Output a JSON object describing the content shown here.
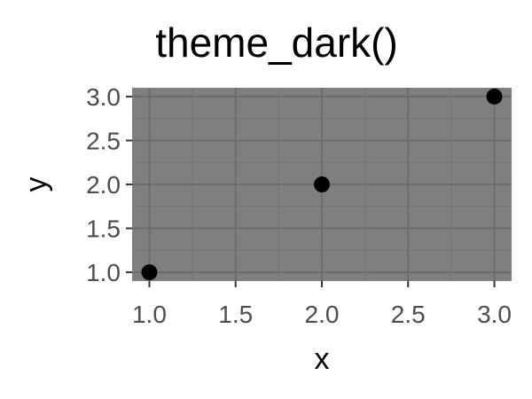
{
  "chart_data": {
    "type": "scatter",
    "title": "theme_dark()",
    "xlabel": "x",
    "ylabel": "y",
    "x": [
      1.0,
      2.0,
      3.0
    ],
    "y": [
      1.0,
      2.0,
      3.0
    ],
    "xlim": [
      0.9,
      3.1
    ],
    "ylim": [
      0.9,
      3.1
    ],
    "x_ticks": [
      1.0,
      1.5,
      2.0,
      2.5,
      3.0
    ],
    "y_ticks": [
      1.0,
      1.5,
      2.0,
      2.5,
      3.0
    ],
    "x_tick_labels": [
      "1.0",
      "1.5",
      "2.0",
      "2.5",
      "3.0"
    ],
    "y_tick_labels": [
      "1.0",
      "1.5",
      "2.0",
      "2.5",
      "3.0"
    ],
    "grid": true,
    "legend": "none",
    "colors": {
      "panel_background": "#7f7f7f",
      "major_grid": "#6b6b6b",
      "minor_grid": "#737373",
      "point": "#000000",
      "tick_text": "#4d4d4d",
      "axis_ticks": "#333333"
    }
  }
}
